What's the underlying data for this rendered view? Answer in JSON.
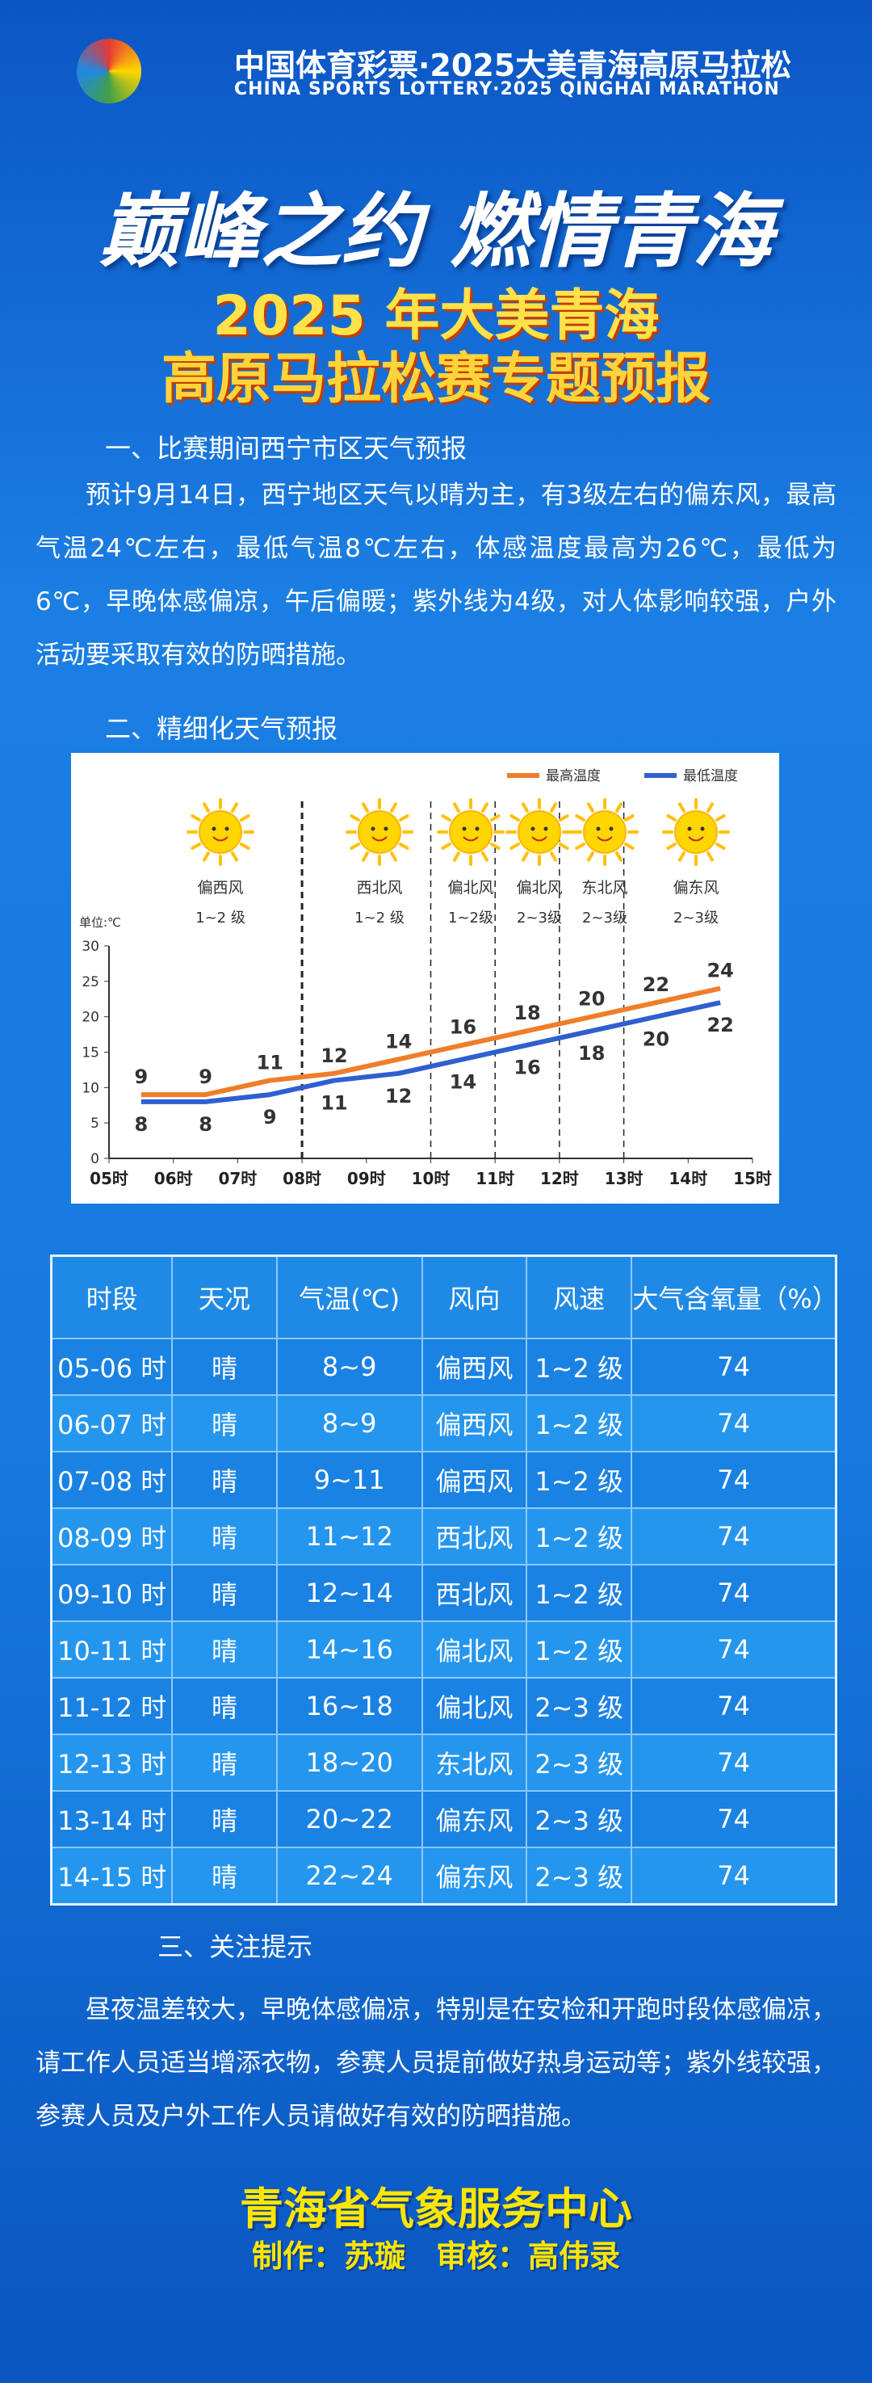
{
  "header": {
    "logo_cn": "中国体育彩票·2025大美青海高原马拉松",
    "logo_en": "CHINA SPORTS LOTTERY·2025 QINGHAI MARATHON",
    "slogan": "巅峰之约 燃情青海",
    "title_1": "2025 年大美青海",
    "title_2": "高原马拉松赛专题预报"
  },
  "section_1": {
    "heading": "一、比赛期间西宁市区天气预报",
    "text": "预计9月14日，西宁地区天气以晴为主，有3级左右的偏东风，最高气温24℃左右，最低气温8℃左右，体感温度最高为26℃，最低为6℃，早晚体感偏凉，午后偏暖；紫外线为4级，对人体影响较强，户外活动要采取有效的防晒措施。"
  },
  "section_2": {
    "heading": "二、精细化天气预报"
  },
  "chart_data": {
    "type": "line",
    "y_label": "单位:℃",
    "x": [
      5.5,
      6.5,
      7.5,
      8.5,
      9.5,
      10.5,
      11.5,
      12.5,
      13.5,
      14.5
    ],
    "xlim": [
      5,
      15
    ],
    "xticks": [
      {
        "value": 5,
        "label": "05时"
      },
      {
        "value": 6,
        "label": "06时"
      },
      {
        "value": 7,
        "label": "07时"
      },
      {
        "value": 8,
        "label": "08时"
      },
      {
        "value": 9,
        "label": "09时"
      },
      {
        "value": 10,
        "label": "10时"
      },
      {
        "value": 11,
        "label": "11时"
      },
      {
        "value": 12,
        "label": "12时"
      },
      {
        "value": 13,
        "label": "13时"
      },
      {
        "value": 14,
        "label": "14时"
      },
      {
        "value": 15,
        "label": "15时"
      }
    ],
    "ylim": [
      0,
      30
    ],
    "yticks": [
      0,
      5,
      10,
      15,
      20,
      25,
      30
    ],
    "dividers": [
      8,
      10,
      11,
      12,
      13
    ],
    "legend": "top-right",
    "series": [
      {
        "name": "最高温度",
        "color": "#f07d2a",
        "values": [
          9,
          9,
          11,
          12,
          14,
          16,
          18,
          20,
          22,
          24
        ]
      },
      {
        "name": "最低温度",
        "color": "#2f5fd0",
        "values": [
          8,
          8,
          9,
          11,
          12,
          14,
          16,
          18,
          20,
          22
        ]
      }
    ],
    "annotations": [
      {
        "wind": "偏西风",
        "level": "1~2 级"
      },
      {
        "wind": "西北风",
        "level": "1~2 级"
      },
      {
        "wind": "偏北风",
        "level": "1~2级"
      },
      {
        "wind": "偏北风",
        "level": "2~3级"
      },
      {
        "wind": "东北风",
        "level": "2~3级"
      },
      {
        "wind": "偏东风",
        "level": "2~3级"
      }
    ]
  },
  "table": {
    "columns": [
      "时段",
      "天况",
      "气温(℃)",
      "风向",
      "风速",
      "大气含氧量（%）"
    ],
    "rows": [
      [
        "05-06 时",
        "晴",
        "8~9",
        "偏西风",
        "1~2 级",
        "74"
      ],
      [
        "06-07 时",
        "晴",
        "8~9",
        "偏西风",
        "1~2 级",
        "74"
      ],
      [
        "07-08 时",
        "晴",
        "9~11",
        "偏西风",
        "1~2 级",
        "74"
      ],
      [
        "08-09 时",
        "晴",
        "11~12",
        "西北风",
        "1~2 级",
        "74"
      ],
      [
        "09-10 时",
        "晴",
        "12~14",
        "西北风",
        "1~2 级",
        "74"
      ],
      [
        "10-11 时",
        "晴",
        "14~16",
        "偏北风",
        "1~2 级",
        "74"
      ],
      [
        "11-12 时",
        "晴",
        "16~18",
        "偏北风",
        "2~3 级",
        "74"
      ],
      [
        "12-13 时",
        "晴",
        "18~20",
        "东北风",
        "2~3 级",
        "74"
      ],
      [
        "13-14 时",
        "晴",
        "20~22",
        "偏东风",
        "2~3 级",
        "74"
      ],
      [
        "14-15 时",
        "晴",
        "22~24",
        "偏东风",
        "2~3 级",
        "74"
      ]
    ]
  },
  "section_3": {
    "heading": "三、关注提示",
    "text": "昼夜温差较大，早晚体感偏凉，特别是在安检和开跑时段体感偏凉，请工作人员适当增添衣物，参赛人员提前做好热身运动等；紫外线较强，参赛人员及户外工作人员请做好有效的防晒措施。"
  },
  "footer": {
    "org": "青海省气象服务中心",
    "credits": "制作：苏璇　审核：高伟录"
  }
}
